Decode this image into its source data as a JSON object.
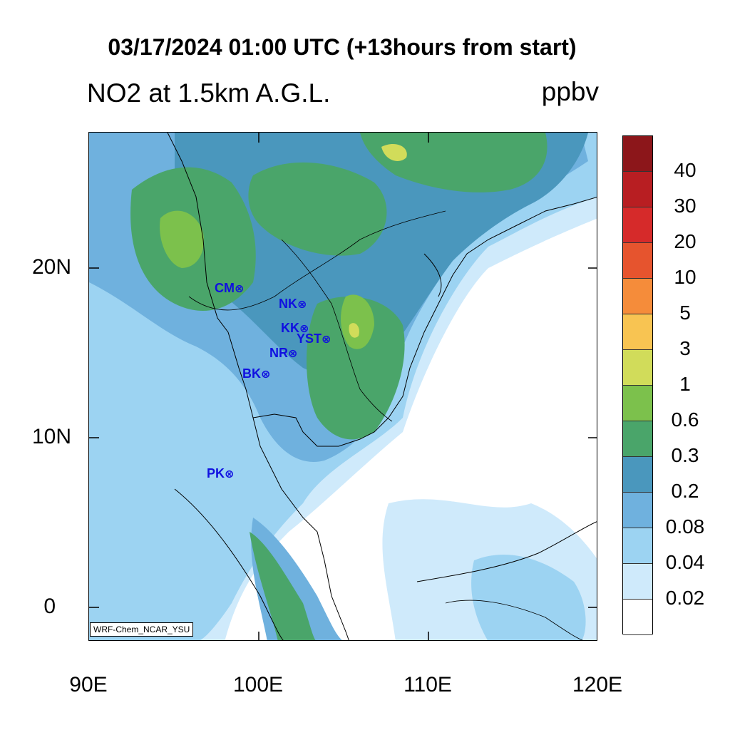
{
  "title": "03/17/2024 01:00 UTC (+13hours from start)",
  "subtitle": "NO2 at 1.5km A.G.L.",
  "units": "ppbv",
  "credit": "WRF-Chem_NCAR_YSU",
  "axes": {
    "lat_labels": [
      "20N",
      "10N",
      "0"
    ],
    "lon_labels": [
      "90E",
      "100E",
      "110E",
      "120E"
    ]
  },
  "stations": [
    {
      "code": "CM",
      "marker": "⊗",
      "lon": 98.98,
      "lat": 18.8
    },
    {
      "code": "NK",
      "marker": "⊗",
      "lon": 102.7,
      "lat": 17.9
    },
    {
      "code": "KK",
      "marker": "⊗",
      "lon": 102.8,
      "lat": 16.45
    },
    {
      "code": "YST",
      "marker": "⊗",
      "lon": 104.15,
      "lat": 15.8
    },
    {
      "code": "NR",
      "marker": "⊗",
      "lon": 102.1,
      "lat": 14.95
    },
    {
      "code": "BK",
      "marker": "⊗",
      "lon": 100.5,
      "lat": 13.75
    },
    {
      "code": "PK",
      "marker": "⊗",
      "lon": 98.4,
      "lat": 7.9
    }
  ],
  "colorbar": {
    "colors": [
      "#ffffff",
      "#cfeafb",
      "#9cd3f2",
      "#6fb1de",
      "#4a97bd",
      "#4aa56a",
      "#7cc14c",
      "#d1dc5a",
      "#f8c452",
      "#f58c3a",
      "#e6542e",
      "#d62a2a",
      "#b81e22",
      "#8c161a"
    ],
    "labels": [
      "0.02",
      "0.04",
      "0.08",
      "0.2",
      "0.3",
      "0.6",
      "1",
      "3",
      "5",
      "10",
      "20",
      "30",
      "40"
    ]
  },
  "map_extent": {
    "lon": [
      90,
      120
    ],
    "lat": [
      -2,
      28
    ]
  }
}
